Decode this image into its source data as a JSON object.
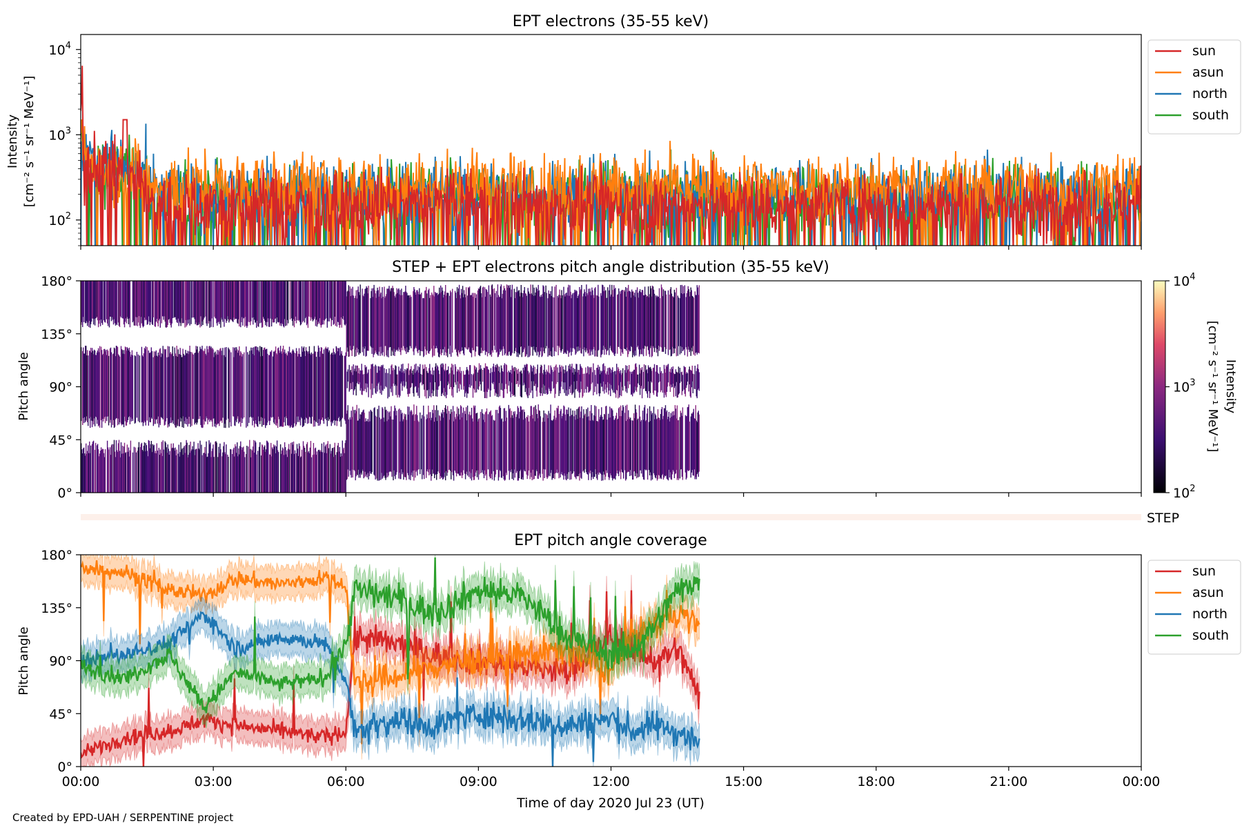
{
  "credit": "Created by EPD-UAH / SERPENTINE project",
  "x_axis": {
    "label": "Time of day 2020 Jul 23 (UT)",
    "ticks": [
      "00:00",
      "03:00",
      "06:00",
      "09:00",
      "12:00",
      "15:00",
      "18:00",
      "21:00",
      "00:00"
    ],
    "range_hours": [
      0,
      24
    ]
  },
  "series_colors": {
    "sun": "#d62728",
    "asun": "#ff7f0e",
    "north": "#1f77b4",
    "south": "#2ca02c"
  },
  "chart_data": [
    {
      "type": "line",
      "title": "EPT electrons (35-55 keV)",
      "ylabel_line1": "Intensity",
      "ylabel_line2": "[cm⁻² s⁻¹ sr⁻¹ MeV⁻¹]",
      "yscale": "log",
      "ylim": [
        50,
        15000
      ],
      "y_ticks": [
        {
          "base": "10",
          "exp": "2"
        },
        {
          "base": "10",
          "exp": "3"
        },
        {
          "base": "10",
          "exp": "4"
        }
      ],
      "legend_position": "right",
      "series": [
        {
          "name": "sun",
          "color": "#d62728",
          "start_value": 2500,
          "mean_level": 150,
          "early_level": 500
        },
        {
          "name": "asun",
          "color": "#ff7f0e",
          "start_value": 900,
          "mean_level": 250,
          "early_level": 500
        },
        {
          "name": "north",
          "color": "#1f77b4",
          "start_value": 900,
          "mean_level": 200,
          "early_level": 550
        },
        {
          "name": "south",
          "color": "#2ca02c",
          "start_value": 800,
          "mean_level": 180,
          "early_level": 500
        }
      ]
    },
    {
      "type": "heatmap",
      "title": "STEP + EPT electrons pitch angle distribution (35-55 keV)",
      "ylabel": "Pitch angle",
      "y_ticks": [
        "0°",
        "45°",
        "90°",
        "135°",
        "180°"
      ],
      "ylim": [
        0,
        180
      ],
      "data_end_hour": 14.0,
      "colorbar": {
        "label_line1": "Intensity",
        "label_line2": "[cm⁻² s⁻¹ sr⁻¹ MeV⁻¹]",
        "scale": "log",
        "range": [
          100,
          10000
        ],
        "ticks": [
          {
            "base": "10",
            "exp": "2"
          },
          {
            "base": "10",
            "exp": "3"
          },
          {
            "base": "10",
            "exp": "4"
          }
        ]
      }
    },
    {
      "type": "bar",
      "label": "STEP",
      "color": "#fdf0ea"
    },
    {
      "type": "line",
      "title": "EPT pitch angle coverage",
      "ylabel": "Pitch angle",
      "y_ticks": [
        "0°",
        "45°",
        "90°",
        "135°",
        "180°"
      ],
      "ylim": [
        0,
        180
      ],
      "data_end_hour": 14.0,
      "legend_position": "right",
      "series": [
        {
          "name": "sun",
          "color": "#d62728",
          "x_hours": [
            0,
            1,
            2,
            2.8,
            3.5,
            4.5,
            5.5,
            6.0,
            6.2,
            7,
            8,
            9,
            10,
            11,
            12,
            12.5,
            13,
            13.5,
            14
          ],
          "y_deg": [
            10,
            25,
            30,
            40,
            35,
            30,
            25,
            30,
            110,
            105,
            95,
            90,
            85,
            80,
            110,
            100,
            90,
            100,
            60
          ]
        },
        {
          "name": "asun",
          "color": "#ff7f0e",
          "x_hours": [
            0,
            1,
            2,
            2.8,
            3.5,
            4.5,
            5.5,
            6.0,
            6.2,
            7,
            8,
            9,
            10,
            11,
            12,
            12.5,
            13,
            13.5,
            14
          ],
          "y_deg": [
            170,
            165,
            150,
            145,
            160,
            155,
            160,
            155,
            70,
            75,
            85,
            90,
            95,
            100,
            80,
            110,
            120,
            130,
            120
          ]
        },
        {
          "name": "north",
          "color": "#1f77b4",
          "x_hours": [
            0,
            1,
            2,
            2.8,
            3.5,
            4.5,
            5.5,
            6.0,
            6.2,
            7,
            8,
            9,
            10,
            11,
            12,
            12.5,
            13,
            13.5,
            14
          ],
          "y_deg": [
            90,
            95,
            105,
            130,
            100,
            110,
            105,
            75,
            30,
            40,
            35,
            45,
            40,
            35,
            40,
            30,
            35,
            30,
            20
          ]
        },
        {
          "name": "south",
          "color": "#2ca02c",
          "x_hours": [
            0,
            1,
            2,
            2.8,
            3.5,
            4.5,
            5.5,
            6.0,
            6.2,
            7,
            8,
            9,
            10,
            11,
            12,
            12.5,
            13,
            13.5,
            14
          ],
          "y_deg": [
            85,
            75,
            95,
            50,
            80,
            70,
            75,
            105,
            150,
            145,
            130,
            150,
            145,
            110,
            95,
            100,
            120,
            150,
            160
          ]
        }
      ]
    }
  ]
}
